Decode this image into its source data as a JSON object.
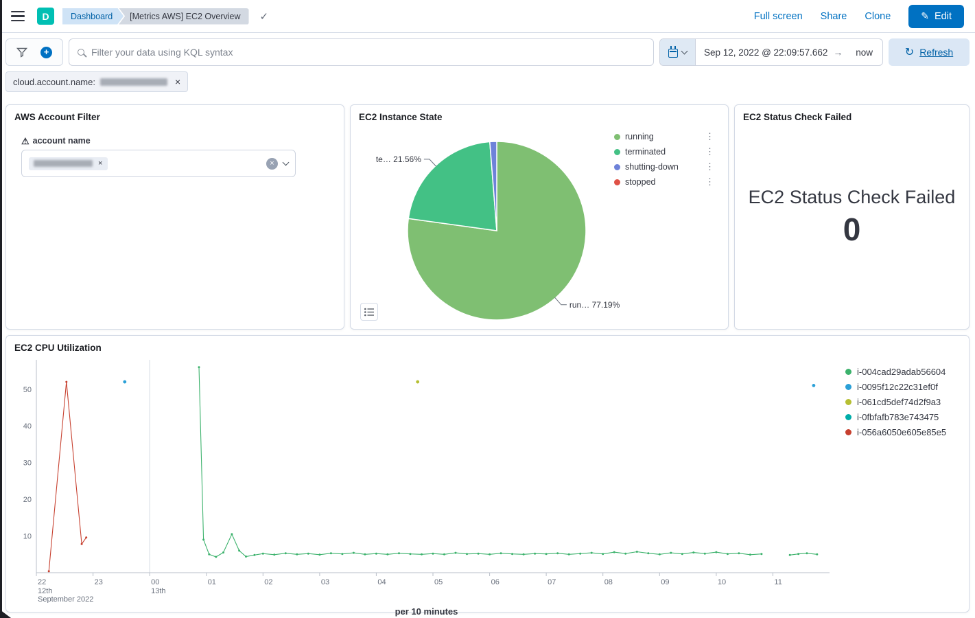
{
  "header": {
    "space_initial": "D",
    "breadcrumbs": [
      "Dashboard",
      "[Metrics AWS] EC2 Overview"
    ],
    "actions": {
      "full_screen": "Full screen",
      "share": "Share",
      "clone": "Clone",
      "edit": "Edit"
    }
  },
  "query_bar": {
    "search_placeholder": "Filter your data using KQL syntax",
    "date_start": "Sep 12, 2022 @ 22:09:57.662",
    "date_end": "now",
    "refresh_label": "Refresh"
  },
  "filter_bar": {
    "pill_field": "cloud.account.name:"
  },
  "panels": {
    "account_filter": {
      "title": "AWS Account Filter",
      "field_label": "account name"
    },
    "instance_state": {
      "title": "EC2 Instance State"
    },
    "status_check": {
      "title": "EC2 Status Check Failed",
      "metric_label": "EC2 Status Check Failed",
      "metric_value": "0"
    },
    "cpu": {
      "title": "EC2 CPU Utilization",
      "xlabel": "per 10 minutes"
    }
  },
  "chart_data": [
    {
      "type": "pie",
      "title": "EC2 Instance State",
      "legend_position": "right",
      "slices": [
        {
          "label": "running",
          "value": 77.19,
          "color": "#7fbf72",
          "callout": "run… 77.19%"
        },
        {
          "label": "terminated",
          "value": 21.56,
          "color": "#43c185",
          "callout": "te… 21.56%"
        },
        {
          "label": "shutting-down",
          "value": 1.25,
          "color": "#6e82d9"
        },
        {
          "label": "stopped",
          "value": 0,
          "color": "#df5146"
        }
      ]
    },
    {
      "type": "line",
      "title": "EC2 CPU Utilization",
      "xlabel": "per 10 minutes",
      "ylabel": "",
      "ylim": [
        0,
        58
      ],
      "y_ticks": [
        10,
        20,
        30,
        40,
        50
      ],
      "x_domain_hours": 14,
      "x_tick_labels": [
        "22",
        "23",
        "00",
        "01",
        "02",
        "03",
        "04",
        "05",
        "06",
        "07",
        "08",
        "09",
        "10",
        "11"
      ],
      "x_context_labels": [
        {
          "at": 0,
          "lines": [
            "12th",
            "September 2022"
          ]
        },
        {
          "at": 2,
          "lines": [
            "13th"
          ]
        }
      ],
      "day_separators": [
        2
      ],
      "series": [
        {
          "name": "i-004cad29adab56604",
          "color": "#3cb26c",
          "points": [
            [
              2.87,
              56
            ],
            [
              2.95,
              9
            ],
            [
              3.05,
              5
            ],
            [
              3.17,
              4.3
            ],
            [
              3.3,
              5.5
            ],
            [
              3.45,
              10.5
            ],
            [
              3.58,
              6
            ],
            [
              3.7,
              4.4
            ],
            [
              3.85,
              4.8
            ],
            [
              4.0,
              5.2
            ],
            [
              4.2,
              4.9
            ],
            [
              4.4,
              5.3
            ],
            [
              4.6,
              5.0
            ],
            [
              4.8,
              5.2
            ],
            [
              5.0,
              4.9
            ],
            [
              5.2,
              5.3
            ],
            [
              5.4,
              5.1
            ],
            [
              5.6,
              5.4
            ],
            [
              5.8,
              5.0
            ],
            [
              6.0,
              5.2
            ],
            [
              6.2,
              5.0
            ],
            [
              6.4,
              5.3
            ],
            [
              6.6,
              5.1
            ],
            [
              6.8,
              5.0
            ],
            [
              7.0,
              5.2
            ],
            [
              7.2,
              5.0
            ],
            [
              7.4,
              5.4
            ],
            [
              7.6,
              5.1
            ],
            [
              7.8,
              5.2
            ],
            [
              8.0,
              5.0
            ],
            [
              8.2,
              5.3
            ],
            [
              8.4,
              5.1
            ],
            [
              8.6,
              5.0
            ],
            [
              8.8,
              5.2
            ],
            [
              9.0,
              5.1
            ],
            [
              9.2,
              5.3
            ],
            [
              9.4,
              5.0
            ],
            [
              9.6,
              5.2
            ],
            [
              9.8,
              5.4
            ],
            [
              10.0,
              5.1
            ],
            [
              10.2,
              5.6
            ],
            [
              10.4,
              5.2
            ],
            [
              10.6,
              5.7
            ],
            [
              10.8,
              5.3
            ],
            [
              11.0,
              5.0
            ],
            [
              11.2,
              5.4
            ],
            [
              11.4,
              5.1
            ],
            [
              11.6,
              5.5
            ],
            [
              11.8,
              5.2
            ],
            [
              12.0,
              5.6
            ],
            [
              12.2,
              5.1
            ],
            [
              12.4,
              5.3
            ],
            [
              12.6,
              4.9
            ],
            [
              12.8,
              5.1
            ],
            null,
            [
              13.3,
              4.8
            ],
            [
              13.45,
              5.1
            ],
            [
              13.6,
              5.3
            ],
            [
              13.78,
              5.0
            ]
          ]
        },
        {
          "name": "i-0095f12c22c31ef0f",
          "color": "#2ba0d7",
          "scatter": true,
          "points": [
            [
              1.56,
              52
            ],
            [
              13.72,
              51
            ]
          ]
        },
        {
          "name": "i-061cd5def74d2f9a3",
          "color": "#b6bf33",
          "scatter": true,
          "points": [
            [
              6.73,
              52
            ]
          ]
        },
        {
          "name": "i-0fbfafb783e743475",
          "color": "#00ada9",
          "points": []
        },
        {
          "name": "i-056a6050e605e85e5",
          "color": "#c7402f",
          "points": [
            [
              0.22,
              0.4
            ],
            [
              0.53,
              52
            ],
            [
              0.8,
              7.8
            ],
            [
              0.88,
              9.6
            ]
          ]
        }
      ]
    }
  ]
}
